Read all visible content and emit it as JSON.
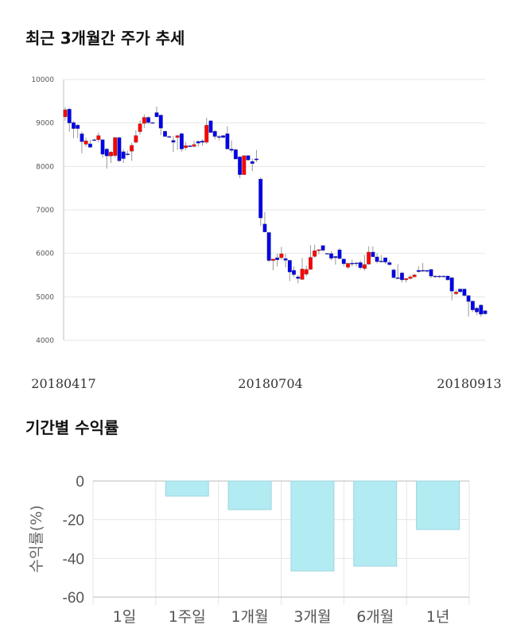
{
  "chart_data": [
    {
      "type": "candlestick",
      "title": "최근 3개월간 주가 추세",
      "ylim": [
        4000,
        10000
      ],
      "yticks": [
        "10000",
        "9000",
        "8000",
        "7000",
        "6000",
        "5000",
        "4000"
      ],
      "xticks": [
        "20180417",
        "20180704",
        "20180913"
      ],
      "grid": true,
      "colors": {
        "up": "#ff0000",
        "down": "#0000ee",
        "wick": "#999999"
      },
      "candles_ohlc": [
        [
          9140,
          9360,
          9050,
          9305
        ],
        [
          9320,
          9350,
          8800,
          9000
        ],
        [
          9010,
          9050,
          8650,
          8870
        ],
        [
          8950,
          8970,
          8650,
          8870
        ],
        [
          8750,
          8800,
          8300,
          8570
        ],
        [
          8510,
          8660,
          8450,
          8590
        ],
        [
          8520,
          8610,
          8430,
          8440
        ],
        [
          8615,
          8640,
          8600,
          8615
        ],
        [
          8615,
          8780,
          8560,
          8710
        ],
        [
          8615,
          8630,
          8200,
          8280
        ],
        [
          8400,
          8430,
          7950,
          8240
        ],
        [
          8240,
          8360,
          8080,
          8330
        ],
        [
          8250,
          8680,
          8200,
          8665
        ],
        [
          8665,
          8680,
          8100,
          8130
        ],
        [
          8340,
          8400,
          8080,
          8180
        ],
        [
          8290,
          8360,
          8250,
          8290
        ],
        [
          8350,
          8540,
          8130,
          8485
        ],
        [
          8555,
          8830,
          8530,
          8710
        ],
        [
          8800,
          9060,
          8730,
          8980
        ],
        [
          8990,
          9200,
          8880,
          9130
        ],
        [
          9130,
          9150,
          8980,
          9010
        ],
        [
          9010,
          9020,
          8990,
          9010
        ],
        [
          9240,
          9380,
          9180,
          9140
        ],
        [
          9180,
          9200,
          8720,
          8880
        ],
        [
          8810,
          8830,
          8680,
          8690
        ],
        [
          8690,
          8710,
          8660,
          8690
        ],
        [
          8600,
          8700,
          8330,
          8555
        ],
        [
          8665,
          8720,
          8380,
          8710
        ],
        [
          8755,
          8780,
          8340,
          8400
        ],
        [
          8430,
          8560,
          8380,
          8480
        ],
        [
          8475,
          8490,
          8460,
          8475
        ],
        [
          8460,
          8590,
          8440,
          8505
        ],
        [
          8575,
          8600,
          8450,
          8535
        ],
        [
          8585,
          8620,
          8480,
          8555
        ],
        [
          8555,
          9120,
          8520,
          8950
        ],
        [
          9050,
          9060,
          8780,
          8780
        ],
        [
          8810,
          8840,
          8620,
          8690
        ],
        [
          8690,
          8720,
          8600,
          8665
        ],
        [
          8710,
          8720,
          8660,
          8665
        ],
        [
          8755,
          8920,
          8460,
          8400
        ],
        [
          8400,
          8600,
          8320,
          8370
        ],
        [
          8385,
          8410,
          8170,
          8170
        ],
        [
          8220,
          8240,
          7730,
          7810
        ],
        [
          7810,
          8250,
          7810,
          8250
        ],
        [
          8250,
          8260,
          8120,
          8150
        ],
        [
          8115,
          8180,
          7890,
          8065
        ],
        [
          8175,
          8380,
          8100,
          8150
        ],
        [
          7710,
          7750,
          6630,
          6815
        ],
        [
          6675,
          6950,
          6600,
          6490
        ],
        [
          6480,
          6500,
          5800,
          5835
        ],
        [
          5835,
          5850,
          5610,
          5870
        ],
        [
          5900,
          5990,
          5700,
          5850
        ],
        [
          5900,
          6150,
          5850,
          5990
        ],
        [
          5880,
          5990,
          5680,
          5840
        ],
        [
          5840,
          5850,
          5360,
          5570
        ],
        [
          5610,
          5700,
          5460,
          5510
        ],
        [
          5460,
          5500,
          5310,
          5420
        ],
        [
          5400,
          5900,
          5390,
          5640
        ],
        [
          5520,
          5720,
          5470,
          5630
        ],
        [
          5630,
          6190,
          5620,
          5910
        ],
        [
          5930,
          6200,
          5900,
          6060
        ],
        [
          6060,
          6100,
          5980,
          6085
        ],
        [
          6180,
          6180,
          6040,
          6070
        ],
        [
          6000,
          6000,
          5980,
          6000
        ],
        [
          5995,
          6050,
          5840,
          5885
        ],
        [
          5930,
          5940,
          5740,
          5900
        ],
        [
          6080,
          6120,
          5860,
          5880
        ],
        [
          5870,
          5880,
          5700,
          5760
        ],
        [
          5680,
          5780,
          5640,
          5770
        ],
        [
          5775,
          5860,
          5700,
          5775
        ],
        [
          5780,
          5800,
          5700,
          5780
        ],
        [
          5790,
          5840,
          5630,
          5670
        ],
        [
          5650,
          5960,
          5600,
          5745
        ],
        [
          5750,
          6160,
          5740,
          6030
        ],
        [
          6030,
          6160,
          5930,
          5920
        ],
        [
          5920,
          6000,
          5770,
          5810
        ],
        [
          5825,
          5960,
          5790,
          5825
        ],
        [
          5900,
          5900,
          5760,
          5800
        ],
        [
          5790,
          5840,
          5710,
          5740
        ],
        [
          5620,
          5650,
          5420,
          5440
        ],
        [
          5440,
          5750,
          5400,
          5440
        ],
        [
          5550,
          5580,
          5330,
          5390
        ],
        [
          5390,
          5430,
          5330,
          5420
        ],
        [
          5420,
          5500,
          5400,
          5460
        ],
        [
          5460,
          5530,
          5440,
          5505
        ],
        [
          5610,
          5700,
          5550,
          5580
        ],
        [
          5610,
          5780,
          5580,
          5610
        ],
        [
          5610,
          5620,
          5560,
          5585
        ],
        [
          5630,
          5640,
          5430,
          5475
        ],
        [
          5480,
          5490,
          5440,
          5480
        ],
        [
          5480,
          5490,
          5430,
          5480
        ],
        [
          5480,
          5490,
          5440,
          5480
        ],
        [
          5480,
          5490,
          5370,
          5390
        ],
        [
          5440,
          5450,
          4920,
          5130
        ],
        [
          5070,
          5160,
          5040,
          5110
        ],
        [
          5180,
          5190,
          5100,
          5115
        ],
        [
          5180,
          5190,
          5010,
          5030
        ],
        [
          5030,
          5040,
          4550,
          4890
        ],
        [
          4900,
          4920,
          4650,
          4700
        ],
        [
          4740,
          4770,
          4580,
          4650
        ],
        [
          4810,
          4830,
          4540,
          4600
        ],
        [
          4680,
          4700,
          4580,
          4610
        ]
      ]
    },
    {
      "type": "bar",
      "title": "기간별 수익률",
      "ylabel": "수익률(%)",
      "ylim": [
        -60,
        0
      ],
      "yticks": [
        "0",
        "-20",
        "-40",
        "-60"
      ],
      "categories": [
        "1일",
        "1주일",
        "1개월",
        "3개월",
        "6개월",
        "1년"
      ],
      "values": [
        0,
        -7.8,
        -14.8,
        -46.5,
        -44.0,
        -25.1
      ],
      "grid": true,
      "colors": {
        "bar": "#b2ebf2",
        "bar_border": "#9fd6de"
      }
    }
  ]
}
